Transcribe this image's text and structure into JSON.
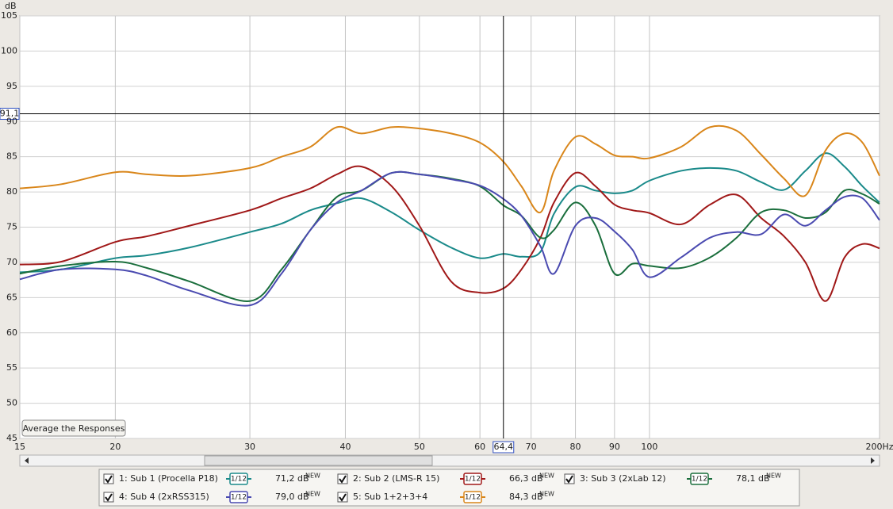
{
  "chart_data": {
    "type": "line",
    "y_label": "dB",
    "x_scale": "log",
    "grid": true,
    "xlim": [
      15,
      200
    ],
    "ylim": [
      45,
      105
    ],
    "xticks": [
      15,
      20,
      30,
      40,
      50,
      60,
      70,
      80,
      90,
      100,
      {
        "value": 200,
        "label": "200Hz"
      }
    ],
    "yticks": [
      45,
      50,
      55,
      60,
      65,
      70,
      75,
      80,
      85,
      90,
      95,
      100,
      105
    ],
    "cursor": {
      "x": {
        "value": 64.4,
        "label": "64,4"
      },
      "y": {
        "value": 91.1,
        "label": "91,1"
      }
    },
    "x": [
      15,
      17,
      20,
      22,
      25,
      30,
      33,
      36,
      39,
      42,
      46,
      50,
      55,
      60,
      64.4,
      68,
      72,
      75,
      80,
      85,
      90,
      95,
      100,
      110,
      120,
      130,
      140,
      150,
      160,
      170,
      180,
      190,
      200
    ],
    "series": [
      {
        "name": "1: Sub 1 (Procella P18)",
        "color": "#1a8a8a",
        "smoothing": "1/12",
        "readout": "71,2 dB",
        "readout_tag": "NEW",
        "values": [
          68.6,
          69,
          70.6,
          71,
          72.1,
          74.3,
          75.5,
          77.4,
          78.4,
          79.1,
          77.1,
          74.6,
          72.1,
          70.6,
          71.2,
          70.8,
          71.5,
          76.9,
          80.7,
          80.2,
          79.8,
          80.2,
          81.6,
          83,
          83.4,
          83,
          81.4,
          80.3,
          83,
          85.5,
          83.6,
          80.8,
          78.5
        ]
      },
      {
        "name": "2: Sub 2 (LMS-R 15)",
        "color": "#a01818",
        "smoothing": "1/12",
        "readout": "66,3 dB",
        "readout_tag": "NEW",
        "values": [
          69.7,
          70.1,
          72.9,
          73.7,
          75.2,
          77.4,
          79.1,
          80.5,
          82.5,
          83.6,
          80.8,
          75.2,
          67.3,
          65.7,
          66.3,
          69,
          73.5,
          78.5,
          82.7,
          80.8,
          78.2,
          77.4,
          77,
          75.4,
          78.2,
          79.6,
          76.3,
          73.7,
          70,
          64.5,
          70.7,
          72.6,
          72
        ]
      },
      {
        "name": "3: Sub 3 (2xLab 12)",
        "color": "#1a6e3c",
        "smoothing": "1/12",
        "readout": "78,1 dB",
        "readout_tag": "NEW",
        "values": [
          68.4,
          69.5,
          70.1,
          69.2,
          67.3,
          64.5,
          69,
          74.6,
          79.3,
          80.2,
          82.7,
          82.5,
          81.9,
          80.8,
          78.1,
          76.6,
          73.5,
          74.6,
          78.5,
          75.2,
          68.4,
          69.8,
          69.5,
          69.2,
          70.7,
          73.5,
          77.1,
          77.4,
          76.3,
          77.1,
          80.2,
          79.7,
          78.3
        ]
      },
      {
        "name": "4: Sub 4 (2xRSS315)",
        "color": "#4a4ab0",
        "smoothing": "1/12",
        "readout": "79,0 dB",
        "readout_tag": "NEW",
        "values": [
          67.6,
          69,
          69,
          68.1,
          66,
          63.9,
          68.4,
          74.6,
          78.5,
          80.2,
          82.7,
          82.5,
          81.8,
          80.9,
          79,
          76.6,
          72.3,
          68.4,
          75.2,
          76.3,
          74.4,
          71.8,
          67.9,
          70.7,
          73.5,
          74.3,
          74,
          76.8,
          75.2,
          77.4,
          79.3,
          79.1,
          76
        ]
      },
      {
        "name": "5: Sub 1+2+3+4",
        "color": "#d9861a",
        "smoothing": "1/12",
        "readout": "84,3 dB",
        "readout_tag": "NEW",
        "values": [
          80.5,
          81.1,
          82.8,
          82.5,
          82.3,
          83.4,
          85,
          86.4,
          89.2,
          88.3,
          89.2,
          89,
          88.3,
          87,
          84.3,
          80.8,
          77.1,
          83,
          87.8,
          86.8,
          85.2,
          85,
          84.8,
          86.4,
          89.2,
          88.7,
          85.3,
          81.9,
          79.5,
          85.9,
          88.3,
          87,
          82.3
        ]
      }
    ]
  },
  "button": "Average the Responses"
}
